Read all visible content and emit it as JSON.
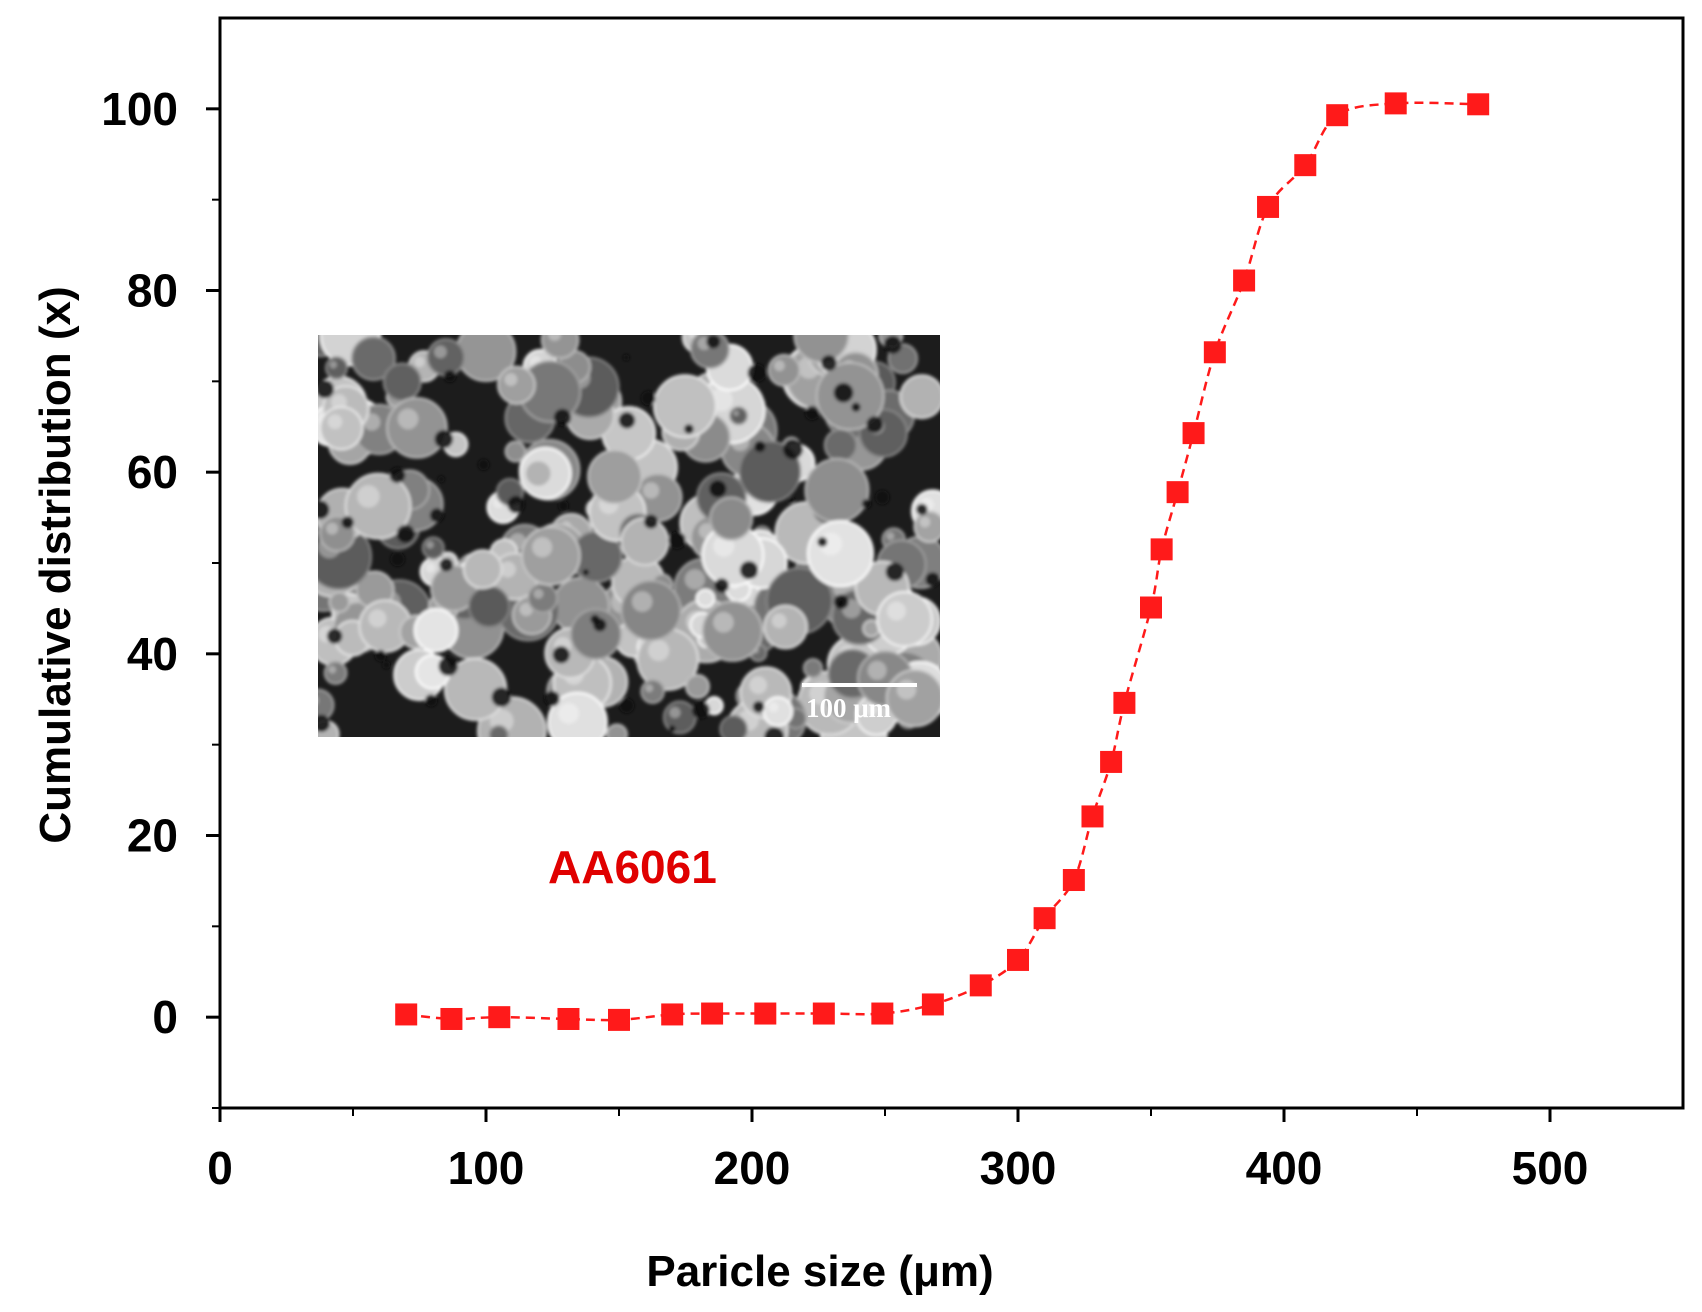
{
  "chart_data": {
    "type": "line",
    "title": "",
    "xlabel": "Paricle size (μm)",
    "ylabel": "Cumulative distribution (x)",
    "xlim": [
      0,
      550
    ],
    "ylim": [
      -10,
      110
    ],
    "xticks": [
      0,
      100,
      200,
      300,
      400,
      500
    ],
    "yticks": [
      0,
      20,
      40,
      60,
      80,
      100
    ],
    "grid": false,
    "marker": "square",
    "line_style": "dashed",
    "color": "#ff1a1a",
    "series": [
      {
        "x": [
          70,
          87,
          105,
          131,
          150,
          170,
          185,
          205,
          227,
          249,
          268,
          286,
          300,
          310,
          321,
          328,
          335,
          340,
          350,
          354,
          360,
          366,
          374,
          385,
          394,
          408,
          420,
          442,
          473
        ],
        "y": [
          0.3,
          -0.2,
          0,
          -0.2,
          -0.3,
          0.3,
          0.4,
          0.4,
          0.4,
          0.4,
          1.4,
          3.5,
          6.3,
          10.9,
          15.1,
          22.1,
          28.1,
          34.6,
          45.1,
          51.5,
          57.8,
          64.3,
          73.2,
          81.1,
          89.2,
          93.8,
          99.3,
          100.6,
          100.5
        ]
      }
    ],
    "annotations": [
      {
        "text": "AA6061",
        "color": "#e00000"
      }
    ],
    "inset": {
      "type": "SEM micrograph",
      "scale_bar_label": "100 μm"
    }
  }
}
